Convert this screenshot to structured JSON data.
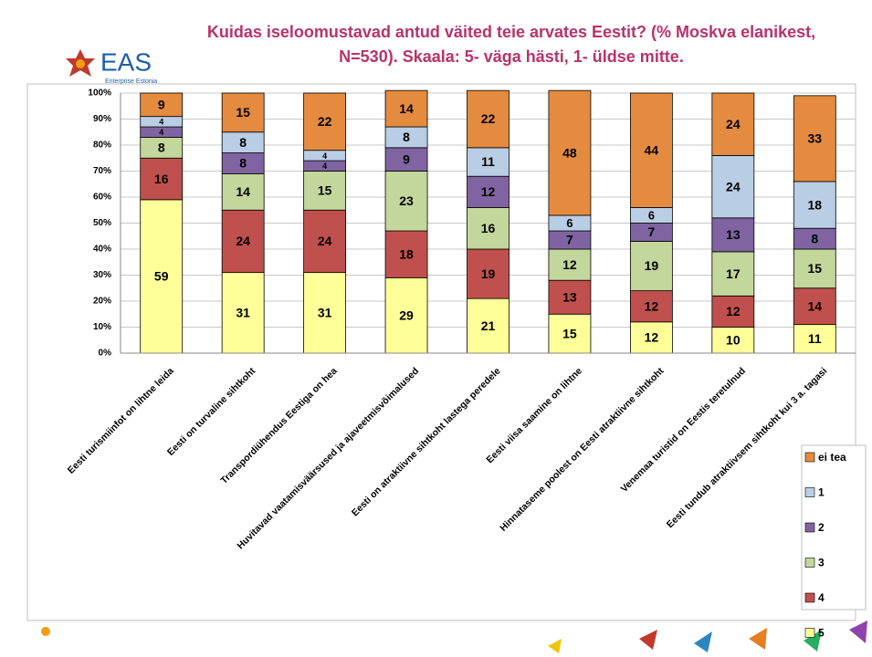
{
  "logo": {
    "name": "EAS",
    "subtitle": "Enterprise Estonia"
  },
  "chart_data": {
    "type": "stacked-bar",
    "title": "Kuidas iseloomustavad antud väited teie arvates Eestit? (% Moskva elanikest, N=530). Skaala: 5- väga hästi, 1- üldse mitte.",
    "categories": [
      "Eesti turismiinfot on lihtne leida",
      "Eesti on turvaline sihtkoht",
      "Transpordiühendus Eestiga on hea",
      "Huvitavad vaatamisväärsused ja ajaveetmisvõimalused",
      "Eesti on atraktiivne sihtkoht lastega peredele",
      "Eesti viisa saamine on lihtne",
      "Hinnataseme poolest on Eesti atraktiivne sihtkoht",
      "Venemaa turistid on Eestis teretulnud",
      "Eesti tundub atraktiivsem sihtkoht kui 3 a. tagasi"
    ],
    "series": [
      {
        "name": "5",
        "color": "#ffff99",
        "values": [
          59,
          31,
          31,
          29,
          21,
          15,
          12,
          10,
          11
        ]
      },
      {
        "name": "4",
        "color": "#c0504d",
        "values": [
          16,
          24,
          24,
          18,
          19,
          13,
          12,
          12,
          14
        ]
      },
      {
        "name": "3",
        "color": "#c3d69b",
        "values": [
          8,
          14,
          15,
          23,
          16,
          12,
          19,
          17,
          15
        ]
      },
      {
        "name": "2",
        "color": "#8064a2",
        "values": [
          4,
          8,
          4,
          9,
          12,
          7,
          7,
          13,
          8
        ]
      },
      {
        "name": "1",
        "color": "#b9cde5",
        "values": [
          4,
          8,
          4,
          8,
          11,
          6,
          6,
          24,
          18
        ]
      },
      {
        "name": "ei tea",
        "color": "#e48b3f",
        "values": [
          9,
          15,
          22,
          14,
          22,
          48,
          44,
          24,
          33
        ]
      }
    ],
    "ylim": [
      0,
      100
    ],
    "yticks": [
      {
        "value": 0,
        "label": "0%"
      },
      {
        "value": 10,
        "label": "10%"
      },
      {
        "value": 20,
        "label": "20%"
      },
      {
        "value": 30,
        "label": "30%"
      },
      {
        "value": 40,
        "label": "40%"
      },
      {
        "value": 50,
        "label": "50%"
      },
      {
        "value": 60,
        "label": "60%"
      },
      {
        "value": 70,
        "label": "70%"
      },
      {
        "value": 80,
        "label": "80%"
      },
      {
        "value": 90,
        "label": "90%"
      },
      {
        "value": 100,
        "label": "100%"
      }
    ],
    "grid": true
  }
}
